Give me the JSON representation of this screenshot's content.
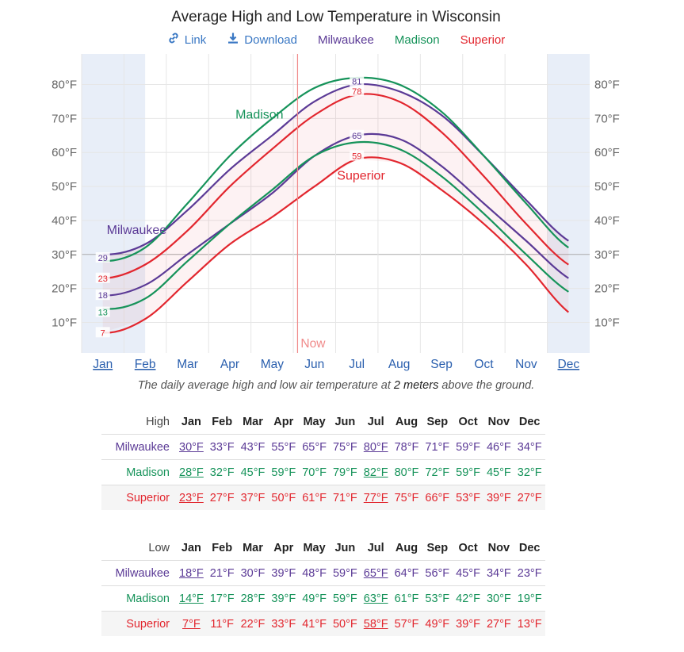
{
  "title": "Average High and Low Temperature in Wisconsin",
  "links": {
    "link_label": "Link",
    "download_label": "Download"
  },
  "colors": {
    "Milwaukee": "#5b3a96",
    "Madison": "#16935a",
    "Superior": "#e2262e",
    "now_line": "#f08a8a",
    "winter_band": "#e8eef8"
  },
  "caption": {
    "prefix": "The daily average high and low air temperature at ",
    "emph": "2 meters",
    "suffix": " above the ground."
  },
  "chart_data": {
    "type": "line",
    "title": "Average High and Low Temperature in Wisconsin",
    "months": [
      "Jan",
      "Feb",
      "Mar",
      "Apr",
      "May",
      "Jun",
      "Jul",
      "Aug",
      "Sep",
      "Oct",
      "Nov",
      "Dec"
    ],
    "yticks": [
      "10°F",
      "20°F",
      "30°F",
      "40°F",
      "50°F",
      "60°F",
      "70°F",
      "80°F"
    ],
    "ylim": [
      1,
      89
    ],
    "y_unit": "°F",
    "now_label": "Now",
    "now_month_index": 5.1,
    "shaded_months": "Dec–Feb",
    "series": [
      {
        "name": "Milwaukee",
        "kind": "high",
        "values": [
          30,
          33,
          43,
          55,
          65,
          75,
          80,
          78,
          71,
          59,
          46,
          34
        ]
      },
      {
        "name": "Milwaukee",
        "kind": "low",
        "values": [
          18,
          21,
          30,
          39,
          48,
          59,
          65,
          64,
          56,
          45,
          34,
          23
        ]
      },
      {
        "name": "Madison",
        "kind": "high",
        "values": [
          28,
          32,
          45,
          59,
          70,
          79,
          82,
          80,
          72,
          59,
          45,
          32
        ]
      },
      {
        "name": "Madison",
        "kind": "low",
        "values": [
          14,
          17,
          28,
          39,
          49,
          59,
          63,
          61,
          53,
          42,
          30,
          19
        ]
      },
      {
        "name": "Superior",
        "kind": "high",
        "values": [
          23,
          27,
          37,
          50,
          61,
          71,
          77,
          75,
          66,
          53,
          39,
          27
        ]
      },
      {
        "name": "Superior",
        "kind": "low",
        "values": [
          7,
          11,
          22,
          33,
          41,
          50,
          58,
          57,
          49,
          39,
          27,
          13
        ]
      }
    ],
    "point_labels": [
      {
        "series": "Milwaukee high",
        "at": "min",
        "text": "29"
      },
      {
        "series": "Milwaukee high",
        "at": "max",
        "text": "81"
      },
      {
        "series": "Milwaukee low",
        "at": "min",
        "text": "18"
      },
      {
        "series": "Milwaukee low",
        "at": "max",
        "text": "65"
      },
      {
        "series": "Madison low",
        "at": "min",
        "text": "13"
      },
      {
        "series": "Superior high",
        "at": "min",
        "text": "23"
      },
      {
        "series": "Superior high",
        "at": "max",
        "text": "78"
      },
      {
        "series": "Superior low",
        "at": "min",
        "text": "7"
      },
      {
        "series": "Superior low",
        "at": "max",
        "text": "59"
      }
    ],
    "series_labels": [
      {
        "name": "Madison",
        "text": "Madison"
      },
      {
        "name": "Milwaukee",
        "text": "Milwaukee"
      },
      {
        "name": "Superior",
        "text": "Superior"
      }
    ]
  },
  "high_table": {
    "corner": "High",
    "months": [
      "Jan",
      "Feb",
      "Mar",
      "Apr",
      "May",
      "Jun",
      "Jul",
      "Aug",
      "Sep",
      "Oct",
      "Nov",
      "Dec"
    ],
    "current_cols": [
      0,
      6
    ],
    "rows": [
      {
        "name": "Milwaukee",
        "values": [
          "30°F",
          "33°F",
          "43°F",
          "55°F",
          "65°F",
          "75°F",
          "80°F",
          "78°F",
          "71°F",
          "59°F",
          "46°F",
          "34°F"
        ]
      },
      {
        "name": "Madison",
        "values": [
          "28°F",
          "32°F",
          "45°F",
          "59°F",
          "70°F",
          "79°F",
          "82°F",
          "80°F",
          "72°F",
          "59°F",
          "45°F",
          "32°F"
        ]
      },
      {
        "name": "Superior",
        "values": [
          "23°F",
          "27°F",
          "37°F",
          "50°F",
          "61°F",
          "71°F",
          "77°F",
          "75°F",
          "66°F",
          "53°F",
          "39°F",
          "27°F"
        ]
      }
    ]
  },
  "low_table": {
    "corner": "Low",
    "months": [
      "Jan",
      "Feb",
      "Mar",
      "Apr",
      "May",
      "Jun",
      "Jul",
      "Aug",
      "Sep",
      "Oct",
      "Nov",
      "Dec"
    ],
    "current_cols": [
      0,
      6
    ],
    "rows": [
      {
        "name": "Milwaukee",
        "values": [
          "18°F",
          "21°F",
          "30°F",
          "39°F",
          "48°F",
          "59°F",
          "65°F",
          "64°F",
          "56°F",
          "45°F",
          "34°F",
          "23°F"
        ]
      },
      {
        "name": "Madison",
        "values": [
          "14°F",
          "17°F",
          "28°F",
          "39°F",
          "49°F",
          "59°F",
          "63°F",
          "61°F",
          "53°F",
          "42°F",
          "30°F",
          "19°F"
        ]
      },
      {
        "name": "Superior",
        "values": [
          "7°F",
          "11°F",
          "22°F",
          "33°F",
          "41°F",
          "50°F",
          "58°F",
          "57°F",
          "49°F",
          "39°F",
          "27°F",
          "13°F"
        ]
      }
    ]
  }
}
